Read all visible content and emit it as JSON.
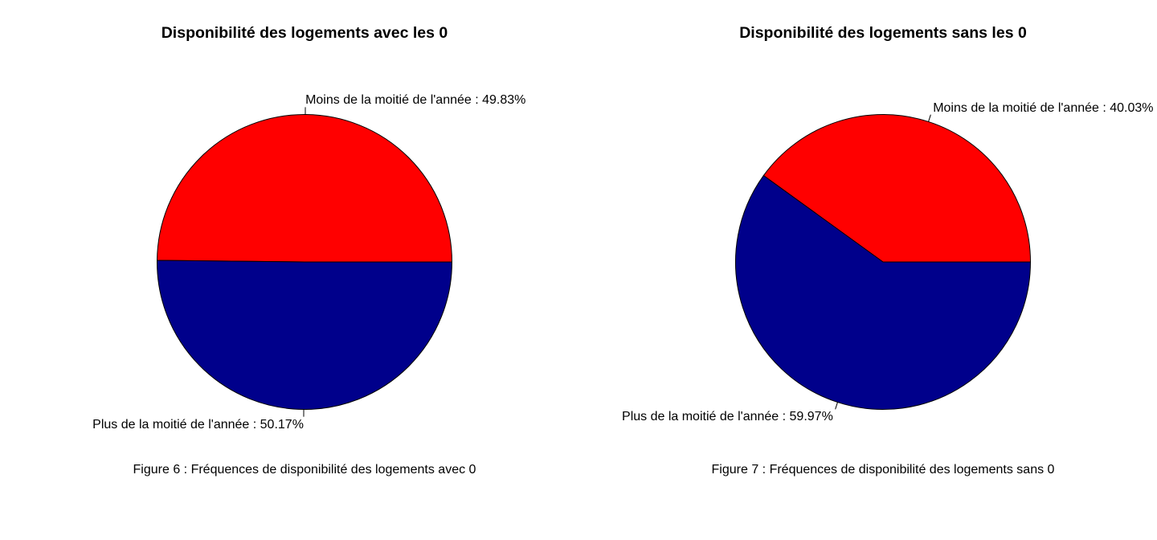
{
  "chart_data": [
    {
      "type": "pie",
      "title": "Disponibilité des logements avec les 0",
      "caption": "Figure 6 : Fréquences de disponibilité des logements avec 0",
      "slices": [
        {
          "label": "Moins de la moitié de l'année : 49.83%",
          "value": 49.83,
          "color": "#FF0000"
        },
        {
          "label": "Plus de la moitié de l'année : 50.17%",
          "value": 50.17,
          "color": "#00008B"
        }
      ]
    },
    {
      "type": "pie",
      "title": "Disponibilité des logements sans les 0",
      "caption": "Figure 7 : Fréquences de disponibilité des logements sans 0",
      "slices": [
        {
          "label": "Moins de la moitié de l'année : 40.03%",
          "value": 40.03,
          "color": "#FF0000"
        },
        {
          "label": "Plus de la moitié de l'année : 59.97%",
          "value": 59.97,
          "color": "#00008B"
        }
      ]
    }
  ]
}
